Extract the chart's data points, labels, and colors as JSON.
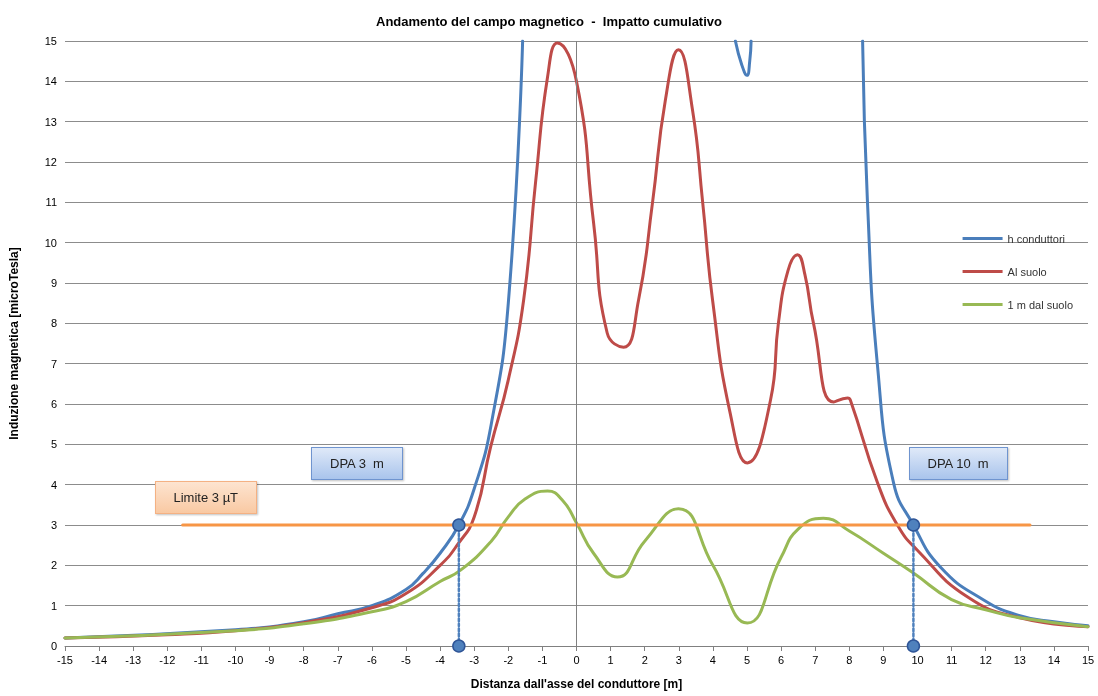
{
  "chart_data": {
    "type": "line",
    "title": "Andamento del campo magnetico  -  Impatto cumulativo",
    "xlabel": "Distanza dall'asse del conduttore [m]",
    "ylabel": "Induzione magnetica [microTesla]",
    "xlim": [
      -15,
      15
    ],
    "xticks": [
      -15,
      -14,
      -13,
      -12,
      -11,
      -10,
      -9,
      -8,
      -7,
      -6,
      -5,
      -4,
      -3,
      -2,
      -1,
      0,
      1,
      2,
      3,
      4,
      5,
      6,
      7,
      8,
      9,
      10,
      11,
      12,
      13,
      14,
      15
    ],
    "ylim": [
      0,
      15
    ],
    "yticks": [
      0,
      1,
      2,
      3,
      4,
      5,
      6,
      7,
      8,
      9,
      10,
      11,
      12,
      13,
      14,
      15
    ],
    "grid": "y",
    "legend": "right",
    "marker": "none",
    "line_style": "solid",
    "series": [
      {
        "name": "h conduttori",
        "color": "#4a7ebb",
        "x": [
          -15,
          -10,
          -8,
          -7,
          -6,
          -5,
          -4.5,
          -4,
          -3.45,
          -3,
          -2.5,
          -2,
          -1.58,
          0,
          4.66,
          4.85,
          5.0,
          5.08,
          5.12,
          7,
          8.39,
          8.53,
          8.83,
          9.3,
          9.88,
          10.67,
          11.94,
          13,
          14,
          15
        ],
        "values": [
          0.2,
          0.4,
          0.6,
          0.8,
          1.0,
          1.4,
          1.8,
          2.3,
          3.0,
          3.9,
          5.5,
          8.5,
          15,
          null,
          15,
          14.4,
          14.15,
          14.5,
          15,
          null,
          15,
          11.06,
          6.92,
          4.04,
          3.0,
          1.96,
          1.14,
          0.75,
          0.6,
          0.5
        ]
      },
      {
        "name": "Al suolo",
        "color": "#be4b48",
        "x": [
          -15,
          -12,
          -10,
          -8,
          -6,
          -5,
          -4,
          -3.5,
          -3,
          -2.52,
          -2,
          -1.55,
          -1.2,
          -0.85,
          -0.56,
          0,
          0.5,
          0.9,
          1.38,
          1.82,
          2.23,
          2.6,
          2.99,
          3.4,
          3.7,
          3.99,
          4.5,
          5.01,
          5.69,
          5.92,
          6.2,
          6.48,
          6.7,
          6.95,
          7.54,
          7.95,
          8.03,
          8.83,
          9.41,
          9.99,
          11.46,
          13,
          15
        ],
        "values": [
          0.2,
          0.28,
          0.38,
          0.58,
          0.95,
          1.3,
          2.0,
          2.5,
          3.2,
          4.93,
          6.6,
          8.58,
          11.5,
          14.1,
          14.95,
          14.0,
          10.5,
          7.76,
          7.41,
          8.58,
          11.0,
          13.5,
          14.78,
          13.3,
          11.0,
          8.58,
          5.8,
          4.54,
          6.1,
          8.0,
          9.3,
          9.7,
          9.2,
          8.0,
          6.05,
          6.15,
          6.1,
          4.04,
          3.0,
          2.38,
          1.22,
          0.7,
          0.48
        ]
      },
      {
        "name": "1 m dal suolo",
        "color": "#98b954",
        "x": [
          -15,
          -10,
          -8,
          -6,
          -5,
          -4,
          -3.4,
          -2.5,
          -2,
          -1.5,
          -0.85,
          -0.4,
          0,
          0.5,
          1.2,
          2,
          2.99,
          4,
          5.01,
          6,
          6.5,
          7.24,
          8,
          9,
          9.88,
          11,
          12,
          13,
          15
        ],
        "values": [
          0.2,
          0.38,
          0.55,
          0.85,
          1.1,
          1.6,
          1.88,
          2.6,
          3.2,
          3.65,
          3.84,
          3.6,
          3.05,
          2.3,
          1.71,
          2.6,
          3.4,
          2.0,
          0.57,
          2.2,
          2.9,
          3.17,
          2.85,
          2.3,
          1.81,
          1.15,
          0.9,
          0.7,
          0.48
        ]
      },
      {
        "color": "#f79646",
        "x": [
          -11.55,
          13.3
        ],
        "values": [
          3,
          3
        ]
      },
      {
        "color": "#4f81bd",
        "x": [
          -3.45,
          -3.45
        ],
        "values": [
          0,
          3
        ],
        "marker": "circle",
        "line_style": "dotted"
      },
      {
        "color": "#4f81bd",
        "x": [
          9.88,
          9.88
        ],
        "values": [
          0,
          3
        ],
        "marker": "circle",
        "line_style": "dotted"
      }
    ],
    "ref_lines": [
      {
        "axis": "x",
        "value": 0,
        "color": "#808080"
      }
    ],
    "annotations": [
      "Limite 3 µT",
      "DPA 3  m",
      "DPA 10  m"
    ]
  }
}
